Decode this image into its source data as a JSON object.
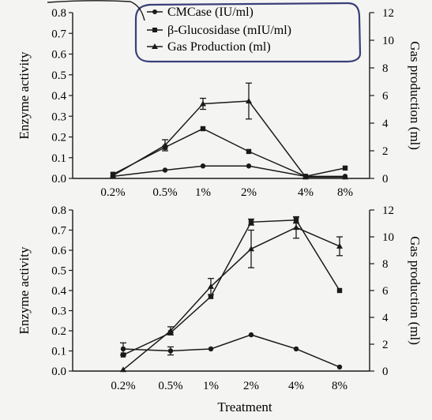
{
  "chart_data": [
    {
      "type": "line",
      "categories": [
        "0.2%",
        "0.5%",
        "1%",
        "2%",
        "4%",
        "8%"
      ],
      "ylabel": "Enzyme activity",
      "y2label": "Gas production (ml)",
      "ylim": [
        0,
        0.8
      ],
      "y2lim": [
        0,
        12
      ],
      "yticks": [
        "0.0",
        "0.1",
        "0.2",
        "0.3",
        "0.4",
        "0.5",
        "0.6",
        "0.7",
        "0.8"
      ],
      "y2ticks": [
        "0",
        "2",
        "4",
        "6",
        "8",
        "10",
        "12"
      ],
      "legend_position": "top-right",
      "series": [
        {
          "name": "CMCase (IU/ml)",
          "axis": "left",
          "marker": "circle",
          "values": [
            0.01,
            0.04,
            0.06,
            0.06,
            0.01,
            0.01
          ]
        },
        {
          "name": "β-Glucosidase (mIU/ml)",
          "axis": "left",
          "marker": "square",
          "values": [
            0.02,
            0.15,
            0.24,
            0.13,
            0.01,
            0.05
          ]
        },
        {
          "name": "Gas Production (ml)",
          "axis": "right",
          "marker": "triangle",
          "values": [
            0.2,
            2.4,
            5.4,
            5.6,
            0.1,
            0.1
          ],
          "errors": [
            0,
            0.4,
            0.4,
            1.3,
            0,
            0
          ]
        }
      ]
    },
    {
      "type": "line",
      "categories": [
        "0.2%",
        "0.5%",
        "1%",
        "2%",
        "4%",
        "8%"
      ],
      "xlabel": "Treatment",
      "ylabel": "Enzyme activity",
      "y2label": "Gas production (ml)",
      "ylim": [
        0,
        0.8
      ],
      "y2lim": [
        0,
        12
      ],
      "yticks": [
        "0.0",
        "0.1",
        "0.2",
        "0.3",
        "0.4",
        "0.5",
        "0.6",
        "0.7",
        "0.8"
      ],
      "y2ticks": [
        "0",
        "2",
        "4",
        "6",
        "8",
        "10",
        "12"
      ],
      "series": [
        {
          "name": "CMCase",
          "axis": "left",
          "marker": "circle",
          "values": [
            0.11,
            0.1,
            0.11,
            0.18,
            0.11,
            0.02
          ],
          "errors": [
            0.03,
            0.02,
            0,
            0,
            0,
            0
          ]
        },
        {
          "name": "β-Glucosidase",
          "axis": "left",
          "marker": "square",
          "values": [
            0.08,
            0.19,
            0.37,
            0.74,
            0.75,
            0.4
          ],
          "errors": [
            0,
            0,
            0,
            0.015,
            0.015,
            0
          ]
        },
        {
          "name": "Gas Production",
          "axis": "right",
          "marker": "triangle",
          "values": [
            0.1,
            3.0,
            6.3,
            9.1,
            10.7,
            9.3
          ],
          "errors": [
            0,
            0.3,
            0.6,
            1.4,
            0.8,
            0.7
          ]
        }
      ]
    }
  ]
}
